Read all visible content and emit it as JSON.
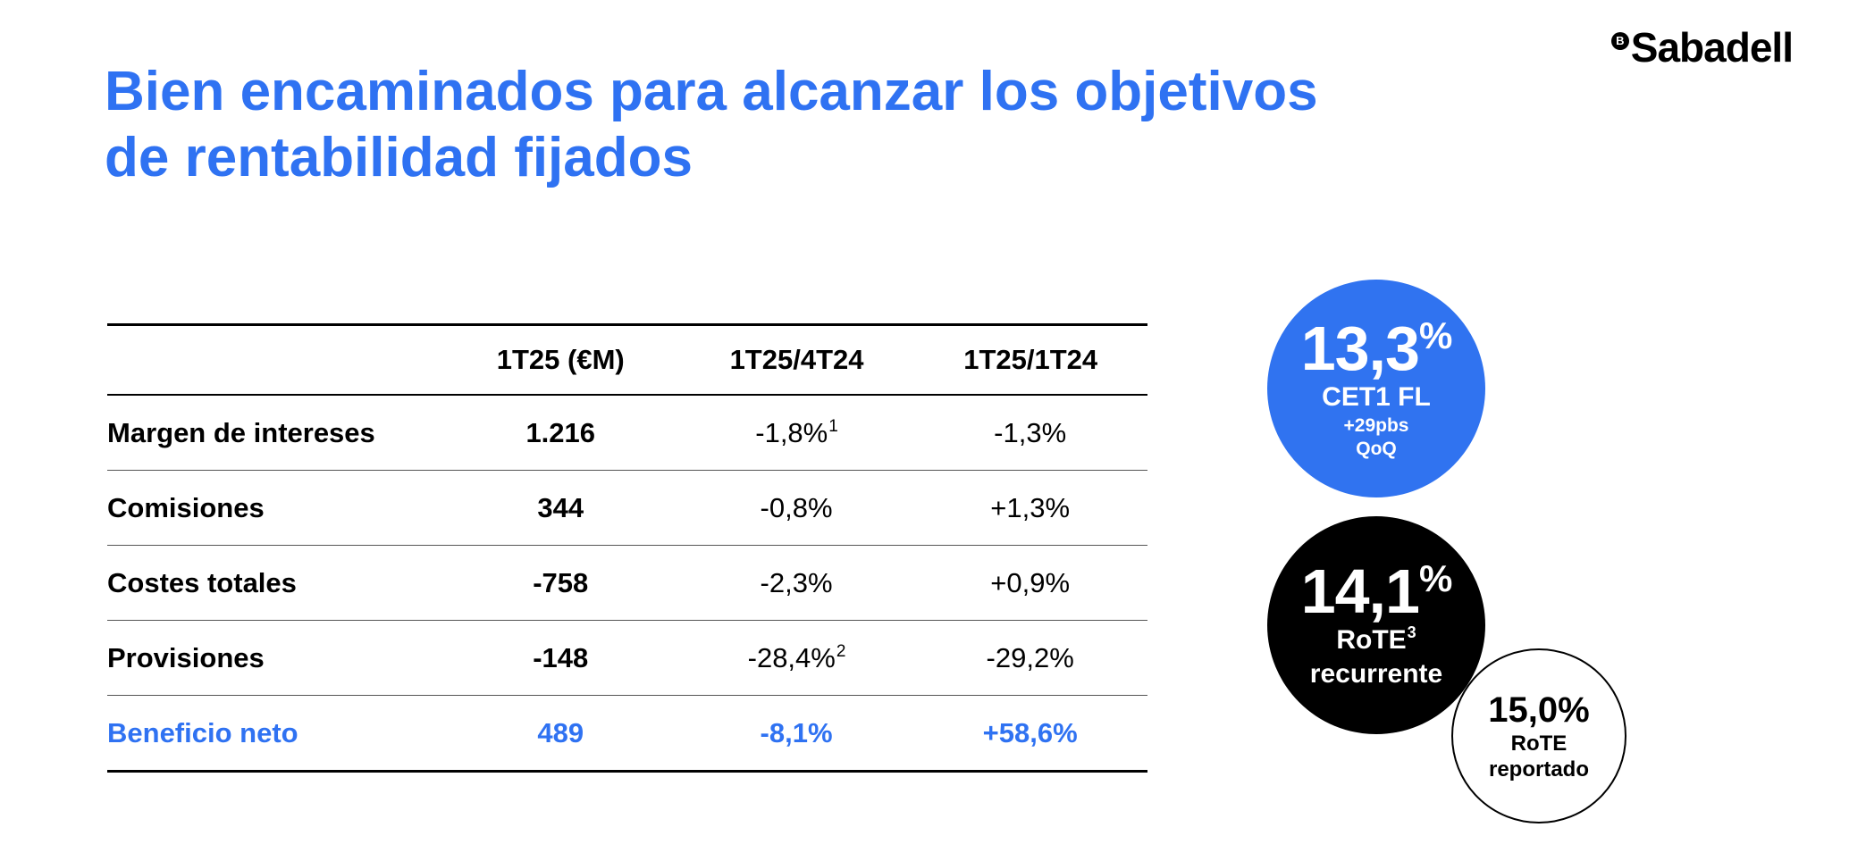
{
  "logo": {
    "mark": "B",
    "text": "Sabadell"
  },
  "title": {
    "line1": "Bien encaminados para alcanzar los objetivos",
    "line2": "de rentabilidad fijados"
  },
  "table": {
    "headers": [
      "",
      "1T25 (€M)",
      "1T25/4T24",
      "1T25/1T24"
    ],
    "rows": [
      {
        "label": "Margen de intereses",
        "value": "1.216",
        "qoq": "-1,8%",
        "qoq_note": "1",
        "yoy": "-1,3%",
        "yoy_note": ""
      },
      {
        "label": "Comisiones",
        "value": "344",
        "qoq": "-0,8%",
        "qoq_note": "",
        "yoy": "+1,3%",
        "yoy_note": ""
      },
      {
        "label": "Costes totales",
        "value": "-758",
        "qoq": "-2,3%",
        "qoq_note": "",
        "yoy": "+0,9%",
        "yoy_note": ""
      },
      {
        "label": "Provisiones",
        "value": "-148",
        "qoq": "-28,4%",
        "qoq_note": "2",
        "yoy": "-29,2%",
        "yoy_note": ""
      },
      {
        "label": "Beneficio neto",
        "value": "489",
        "qoq": "-8,1%",
        "qoq_note": "",
        "yoy": "+58,6%",
        "yoy_note": ""
      }
    ]
  },
  "kpis": {
    "cet1": {
      "value": "13,3",
      "unit": "%",
      "label": "CET1 FL",
      "sub1": "+29pbs",
      "sub2": "QoQ",
      "color": "#3073f0"
    },
    "rote_recurring": {
      "value": "14,1",
      "unit": "%",
      "label": "RoTE",
      "label_note": "3",
      "sub": "recurrente",
      "color": "#000000"
    },
    "rote_reported": {
      "value": "15,0%",
      "label": "RoTE",
      "sub": "reportado"
    }
  },
  "colors": {
    "accent": "#2f72f2",
    "text": "#000000"
  }
}
